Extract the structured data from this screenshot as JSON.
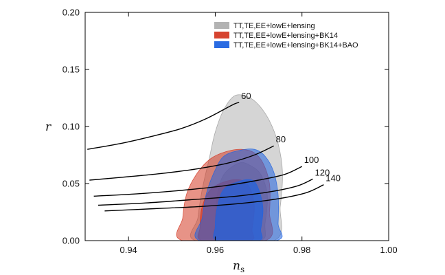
{
  "chart_data": {
    "type": "area",
    "xlabel": "n",
    "xlabel_sub": "s",
    "ylabel": "r",
    "xlim": [
      0.93,
      1.0
    ],
    "ylim": [
      0.0,
      0.2
    ],
    "x_ticks": [
      "0.94",
      "0.96",
      "0.98",
      "1.00"
    ],
    "x_tick_values": [
      0.94,
      0.96,
      0.98,
      1.0
    ],
    "y_ticks": [
      "0.00",
      "0.05",
      "0.10",
      "0.15",
      "0.20"
    ],
    "y_tick_values": [
      0.0,
      0.05,
      0.1,
      0.15,
      0.2
    ],
    "grid": false,
    "legend_position": "top-right",
    "series": [
      {
        "name": "TT,TE,EE+lowE+lensing",
        "color": "#9a9a9a",
        "outer_contour": [
          [
            0.9645,
            0.127
          ],
          [
            0.9675,
            0.126
          ],
          [
            0.97,
            0.119
          ],
          [
            0.9725,
            0.105
          ],
          [
            0.9745,
            0.085
          ],
          [
            0.9755,
            0.06
          ],
          [
            0.975,
            0.03
          ],
          [
            0.9735,
            0.0
          ],
          [
            0.9555,
            0.0
          ],
          [
            0.956,
            0.02
          ],
          [
            0.957,
            0.045
          ],
          [
            0.9585,
            0.07
          ],
          [
            0.96,
            0.095
          ],
          [
            0.962,
            0.115
          ]
        ],
        "inner_contour": [
          [
            0.9655,
            0.068
          ],
          [
            0.968,
            0.066
          ],
          [
            0.9705,
            0.058
          ],
          [
            0.972,
            0.04
          ],
          [
            0.9715,
            0.015
          ],
          [
            0.9705,
            0.0
          ],
          [
            0.9605,
            0.0
          ],
          [
            0.96,
            0.015
          ],
          [
            0.9605,
            0.04
          ],
          [
            0.962,
            0.058
          ]
        ]
      },
      {
        "name": "TT,TE,EE+lowE+lensing+BK14",
        "color": "#d43a25",
        "outer_contour": [
          [
            0.9625,
            0.078
          ],
          [
            0.966,
            0.08
          ],
          [
            0.969,
            0.077
          ],
          [
            0.971,
            0.068
          ],
          [
            0.9725,
            0.05
          ],
          [
            0.9725,
            0.025
          ],
          [
            0.9715,
            0.0
          ],
          [
            0.9525,
            0.0
          ],
          [
            0.9525,
            0.02
          ],
          [
            0.9535,
            0.042
          ],
          [
            0.956,
            0.06
          ],
          [
            0.959,
            0.072
          ]
        ],
        "inner_contour": [
          [
            0.9625,
            0.052
          ],
          [
            0.966,
            0.053
          ],
          [
            0.968,
            0.046
          ],
          [
            0.969,
            0.03
          ],
          [
            0.9685,
            0.01
          ],
          [
            0.968,
            0.0
          ],
          [
            0.957,
            0.0
          ],
          [
            0.9565,
            0.012
          ],
          [
            0.957,
            0.03
          ],
          [
            0.959,
            0.045
          ]
        ]
      },
      {
        "name": "TT,TE,EE+lowE+lensing+BK14+BAO",
        "color": "#1f63e0",
        "outer_contour": [
          [
            0.9655,
            0.079
          ],
          [
            0.969,
            0.08
          ],
          [
            0.9715,
            0.074
          ],
          [
            0.9735,
            0.06
          ],
          [
            0.9745,
            0.04
          ],
          [
            0.9745,
            0.015
          ],
          [
            0.974,
            0.0
          ],
          [
            0.9565,
            0.0
          ],
          [
            0.957,
            0.02
          ],
          [
            0.958,
            0.042
          ],
          [
            0.96,
            0.062
          ],
          [
            0.962,
            0.074
          ]
        ],
        "inner_contour": [
          [
            0.9655,
            0.052
          ],
          [
            0.9685,
            0.053
          ],
          [
            0.97,
            0.045
          ],
          [
            0.971,
            0.028
          ],
          [
            0.9705,
            0.01
          ],
          [
            0.97,
            0.0
          ],
          [
            0.9605,
            0.0
          ],
          [
            0.96,
            0.012
          ],
          [
            0.9605,
            0.03
          ],
          [
            0.962,
            0.045
          ]
        ]
      }
    ],
    "curves": [
      {
        "label": "60",
        "points": [
          [
            0.9305,
            0.08
          ],
          [
            0.938,
            0.085
          ],
          [
            0.945,
            0.091
          ],
          [
            0.952,
            0.098
          ],
          [
            0.958,
            0.107
          ],
          [
            0.964,
            0.119
          ],
          [
            0.9655,
            0.121
          ]
        ]
      },
      {
        "label": "80",
        "points": [
          [
            0.931,
            0.053
          ],
          [
            0.94,
            0.056
          ],
          [
            0.948,
            0.059
          ],
          [
            0.956,
            0.063
          ],
          [
            0.963,
            0.068
          ],
          [
            0.969,
            0.075
          ],
          [
            0.9735,
            0.083
          ]
        ]
      },
      {
        "label": "100",
        "points": [
          [
            0.932,
            0.039
          ],
          [
            0.942,
            0.041
          ],
          [
            0.952,
            0.044
          ],
          [
            0.962,
            0.048
          ],
          [
            0.97,
            0.053
          ],
          [
            0.976,
            0.058
          ],
          [
            0.98,
            0.065
          ]
        ]
      },
      {
        "label": "120",
        "points": [
          [
            0.933,
            0.031
          ],
          [
            0.944,
            0.033
          ],
          [
            0.955,
            0.036
          ],
          [
            0.965,
            0.039
          ],
          [
            0.973,
            0.043
          ],
          [
            0.979,
            0.048
          ],
          [
            0.9825,
            0.054
          ]
        ]
      },
      {
        "label": "140",
        "points": [
          [
            0.9345,
            0.026
          ],
          [
            0.946,
            0.028
          ],
          [
            0.957,
            0.03
          ],
          [
            0.967,
            0.033
          ],
          [
            0.975,
            0.037
          ],
          [
            0.981,
            0.042
          ],
          [
            0.985,
            0.049
          ]
        ]
      }
    ]
  }
}
